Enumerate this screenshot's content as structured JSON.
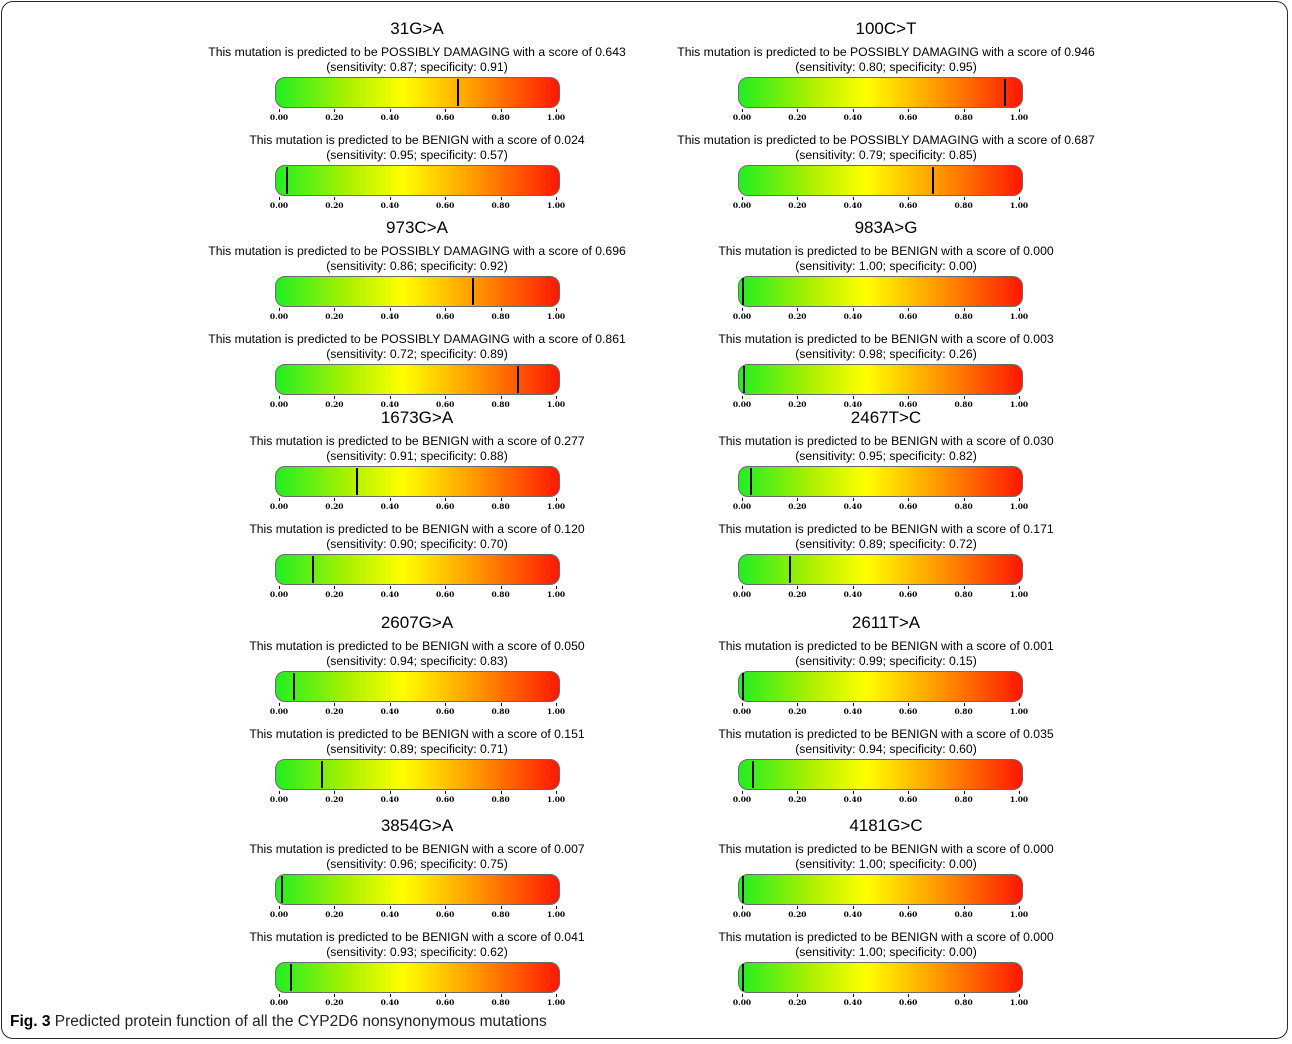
{
  "caption": {
    "label": "Fig. 3",
    "text": "Predicted protein function of all the CYP2D6 nonsynonymous mutations"
  },
  "chart_data": [
    {
      "type": "bar",
      "mutation": "31G>A",
      "predictions": [
        {
          "text": "This mutation is predicted to be POSSIBLY DAMAGING with a score of 0.643",
          "stats": "(sensitivity: 0.87; specificity: 0.91)",
          "score": 0.643
        },
        {
          "text": "This mutation is predicted to be BENIGN with a score of 0.024",
          "stats": "(sensitivity: 0.95; specificity: 0.57)",
          "score": 0.024
        }
      ]
    },
    {
      "type": "bar",
      "mutation": "100C>T",
      "predictions": [
        {
          "text": "This mutation is predicted to be POSSIBLY DAMAGING with a score of 0.946",
          "stats": "(sensitivity: 0.80; specificity: 0.95)",
          "score": 0.946
        },
        {
          "text": "This mutation is predicted to be POSSIBLY DAMAGING with a score of 0.687",
          "stats": "(sensitivity: 0.79; specificity: 0.85)",
          "score": 0.687
        }
      ]
    },
    {
      "type": "bar",
      "mutation": "973C>A",
      "predictions": [
        {
          "text": "This mutation is predicted to be POSSIBLY DAMAGING with a score of 0.696",
          "stats": "(sensitivity: 0.86; specificity: 0.92)",
          "score": 0.696
        },
        {
          "text": "This mutation is predicted to be POSSIBLY DAMAGING with a score of 0.861",
          "stats": "(sensitivity: 0.72; specificity: 0.89)",
          "score": 0.861
        }
      ]
    },
    {
      "type": "bar",
      "mutation": "983A>G",
      "predictions": [
        {
          "text": "This mutation is predicted to be BENIGN with a score of 0.000",
          "stats": "(sensitivity: 1.00; specificity: 0.00)",
          "score": 0.0
        },
        {
          "text": "This mutation is predicted to be BENIGN with a score of 0.003",
          "stats": "(sensitivity: 0.98; specificity: 0.26)",
          "score": 0.003
        }
      ]
    },
    {
      "type": "bar",
      "mutation": "1673G>A",
      "predictions": [
        {
          "text": "This mutation is predicted to be BENIGN with a score of 0.277",
          "stats": "(sensitivity: 0.91; specificity: 0.88)",
          "score": 0.277
        },
        {
          "text": "This mutation is predicted to be BENIGN with a score of 0.120",
          "stats": "(sensitivity: 0.90; specificity: 0.70)",
          "score": 0.12
        }
      ]
    },
    {
      "type": "bar",
      "mutation": "2467T>C",
      "predictions": [
        {
          "text": "This mutation is predicted to be BENIGN with a score of 0.030",
          "stats": "(sensitivity: 0.95; specificity: 0.82)",
          "score": 0.03
        },
        {
          "text": "This mutation is predicted to be BENIGN with a score of 0.171",
          "stats": "(sensitivity: 0.89; specificity: 0.72)",
          "score": 0.171
        }
      ]
    },
    {
      "type": "bar",
      "mutation": "2607G>A",
      "predictions": [
        {
          "text": "This mutation is predicted to be BENIGN with a score of 0.050",
          "stats": "(sensitivity: 0.94; specificity: 0.83)",
          "score": 0.05
        },
        {
          "text": "This mutation is predicted to be BENIGN with a score of 0.151",
          "stats": "(sensitivity: 0.89; specificity: 0.71)",
          "score": 0.151
        }
      ]
    },
    {
      "type": "bar",
      "mutation": "2611T>A",
      "predictions": [
        {
          "text": "This mutation is predicted to be BENIGN with a score of 0.001",
          "stats": "(sensitivity: 0.99; specificity: 0.15)",
          "score": 0.001
        },
        {
          "text": "This mutation is predicted to be BENIGN with a score of 0.035",
          "stats": "(sensitivity: 0.94; specificity: 0.60)",
          "score": 0.035
        }
      ]
    },
    {
      "type": "bar",
      "mutation": "3854G>A",
      "predictions": [
        {
          "text": "This mutation is predicted to be BENIGN with a score of 0.007",
          "stats": "(sensitivity: 0.96; specificity: 0.75)",
          "score": 0.007
        },
        {
          "text": "This mutation is predicted to be BENIGN with a score of 0.041",
          "stats": "(sensitivity: 0.93; specificity: 0.62)",
          "score": 0.041
        }
      ]
    },
    {
      "type": "bar",
      "mutation": "4181G>C",
      "predictions": [
        {
          "text": "This mutation is predicted to be BENIGN with a score of 0.000",
          "stats": "(sensitivity: 1.00; specificity: 0.00)",
          "score": 0.0
        },
        {
          "text": "This mutation is predicted to be BENIGN with a score of 0.000",
          "stats": "(sensitivity: 1.00; specificity: 0.00)",
          "score": 0.0
        }
      ]
    }
  ],
  "axis": {
    "range": [
      0,
      1
    ],
    "tick_labels": [
      "0.00",
      "0.20",
      "0.40",
      "0.60",
      "0.80",
      "1.00"
    ]
  },
  "bar_colors": [
    "#22ee22",
    "#aaf000",
    "#ffff00",
    "#ff9a00",
    "#ff1800"
  ]
}
